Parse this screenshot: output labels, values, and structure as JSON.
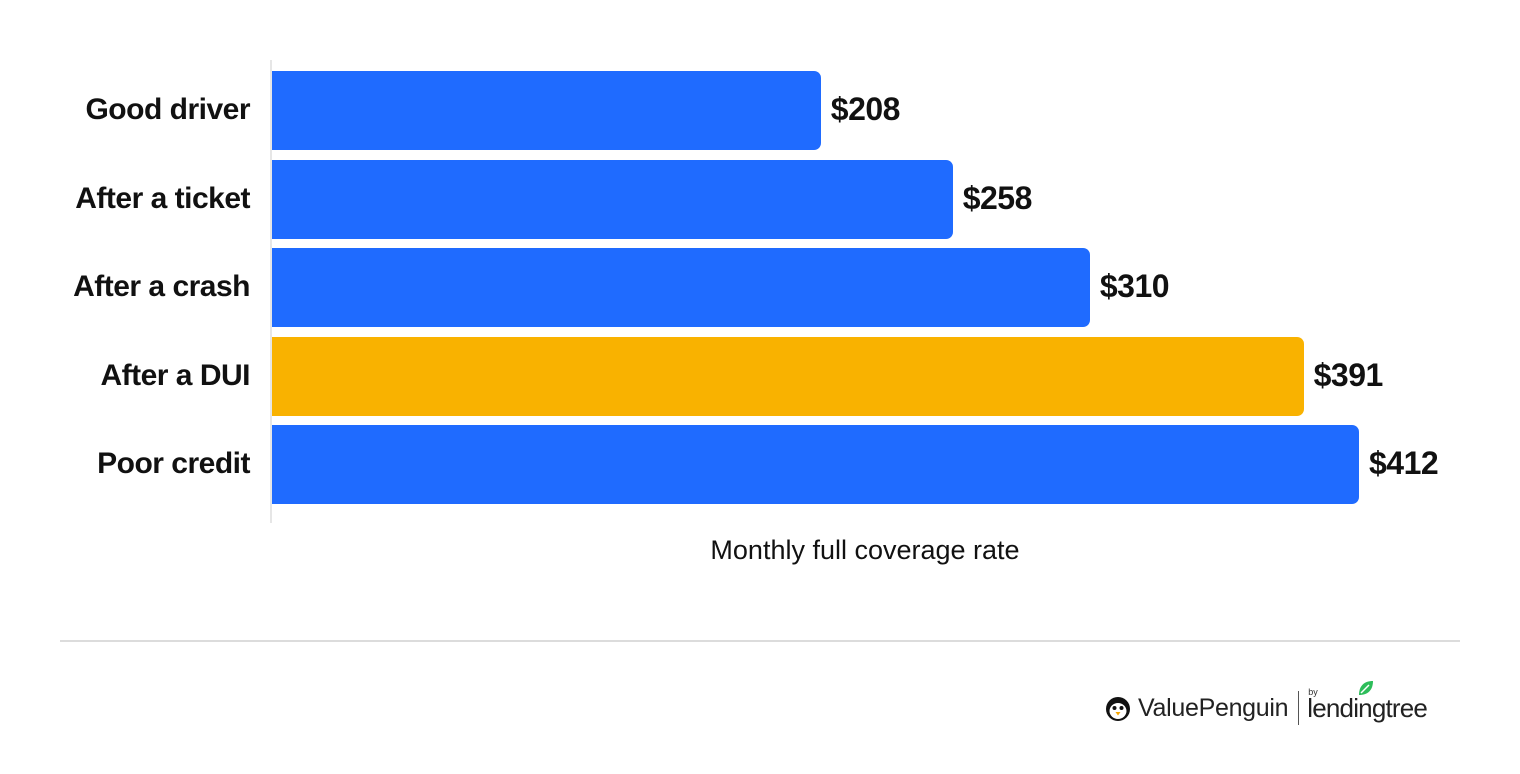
{
  "chart_data": {
    "type": "bar",
    "orientation": "horizontal",
    "title": "",
    "xlabel": "Monthly full coverage rate",
    "ylabel": "",
    "categories": [
      "Good driver",
      "After a ticket",
      "After a crash",
      "After a DUI",
      "Poor credit"
    ],
    "values": [
      208,
      258,
      310,
      391,
      412
    ],
    "value_labels": [
      "$208",
      "$258",
      "$310",
      "$391",
      "$412"
    ],
    "bar_colors": [
      "#1f6bff",
      "#1f6bff",
      "#1f6bff",
      "#f9b200",
      "#1f6bff"
    ],
    "highlighted_category": "After a DUI",
    "xlim": [
      0,
      412
    ],
    "grid": false,
    "legend": null
  },
  "colors": {
    "primary_bar": "#1f6bff",
    "highlight_bar": "#f9b200",
    "leaf_green": "#2dbd5a"
  },
  "bars": [
    {
      "label": "Good driver",
      "value": 208,
      "display": "$208",
      "color": "#1f6bff"
    },
    {
      "label": "After a ticket",
      "value": 258,
      "display": "$258",
      "color": "#1f6bff"
    },
    {
      "label": "After a crash",
      "value": 310,
      "display": "$310",
      "color": "#1f6bff"
    },
    {
      "label": "After a DUI",
      "value": 391,
      "display": "$391",
      "color": "#f9b200"
    },
    {
      "label": "Poor credit",
      "value": 412,
      "display": "$412",
      "color": "#1f6bff"
    }
  ],
  "footer": {
    "brand": "ValuePenguin",
    "by": "by",
    "partner": "lendingtree"
  }
}
